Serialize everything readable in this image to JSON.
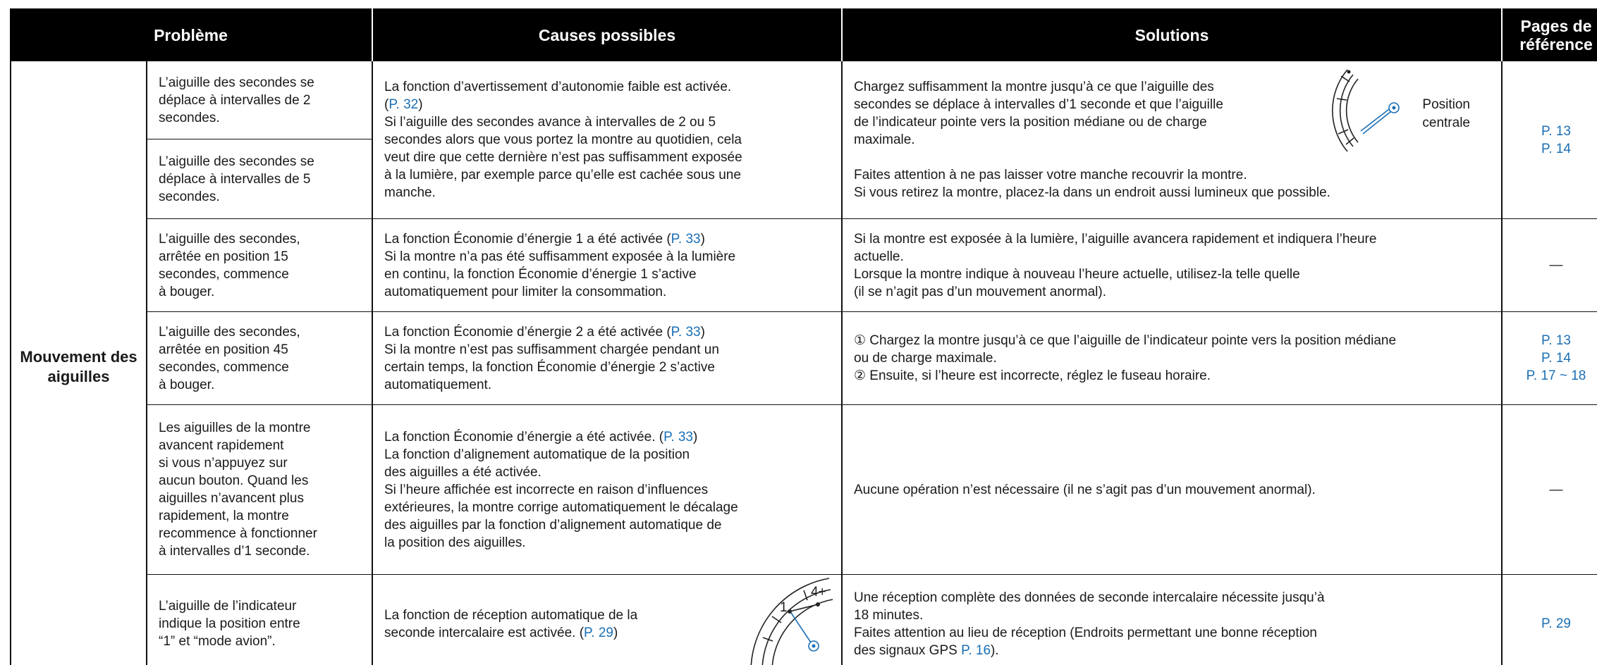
{
  "header": {
    "problem": "Problème",
    "causes": "Causes possibles",
    "solutions": "Solutions",
    "pages": [
      "Pages de",
      "référence"
    ]
  },
  "category": [
    "Mouvement des",
    "aiguilles"
  ],
  "rows": [
    {
      "problems": [
        [
          "L’aiguille des secondes se",
          "déplace à intervalles de 2",
          "secondes."
        ],
        [
          "L’aiguille des secondes se",
          "déplace à intervalles de 5",
          "secondes."
        ]
      ],
      "causes": [
        [
          "La fonction d’avertissement d’autonomie faible est activée.",
          [
            "(",
            {
              "ref": "P. 32"
            },
            ")"
          ],
          "Si l’aiguille des secondes avance à intervalles de 2 ou 5",
          "secondes alors que vous portez la montre au quotidien, cela",
          "veut dire que cette dernière n’est pas suffisamment exposée",
          "à la lumière, par exemple parce qu’elle est cachée sous une",
          "manche."
        ]
      ],
      "solutions": [
        [
          "Chargez suffisamment la montre jusqu’à ce que l’aiguille des",
          "secondes se déplace à intervalles d’1 seconde et que l’aiguille",
          "de l’indicateur pointe vers la position médiane ou de charge",
          "maximale."
        ],
        [
          "Faites attention à ne pas laisser votre manche recouvrir la montre.",
          "Si vous retirez la montre, placez-la dans un endroit aussi lumineux que possible."
        ]
      ],
      "figure": [
        "Position",
        "centrale"
      ],
      "pages": [
        {
          "ref": "P. 13"
        },
        {
          "ref": "P. 14"
        }
      ]
    },
    {
      "problems": [
        [
          "L’aiguille des secondes,",
          "arrêtée en position 15",
          "secondes, commence",
          "à bouger."
        ]
      ],
      "causes": [
        [
          [
            "La fonction Économie d’énergie 1 a été activée (",
            {
              "ref": "P. 33"
            },
            ")"
          ],
          "Si la montre n’a pas été suffisamment exposée à la lumière",
          "en continu, la fonction Économie d’énergie 1 s’active",
          "automatiquement pour limiter la consommation."
        ]
      ],
      "solutions": [
        [
          "Si la montre est exposée à la lumière, l’aiguille avancera rapidement et indiquera l’heure",
          "actuelle.",
          "Lorsque la montre indique à nouveau l’heure actuelle, utilisez-la telle quelle",
          "(il se n’agit pas d’un mouvement anormal)."
        ]
      ],
      "pages": [
        "—"
      ]
    },
    {
      "problems": [
        [
          "L’aiguille des secondes,",
          "arrêtée en position 45",
          "secondes, commence",
          "à bouger."
        ]
      ],
      "causes": [
        [
          [
            "La fonction Économie d’énergie 2 a été activée (",
            {
              "ref": "P. 33"
            },
            ")"
          ],
          "Si la montre n’est pas suffisamment chargée pendant un",
          "certain temps, la fonction Économie d’énergie 2 s’active",
          "automatiquement."
        ]
      ],
      "solutions": [
        [
          "① Chargez la montre jusqu’à ce que l’aiguille de l’indicateur pointe vers la position médiane",
          "ou de charge maximale.",
          "② Ensuite, si l’heure est incorrecte, réglez le fuseau horaire."
        ]
      ],
      "pages": [
        {
          "ref": "P. 13"
        },
        {
          "ref": "P. 14"
        },
        {
          "ref": "P. 17 ~ 18"
        }
      ]
    },
    {
      "problems": [
        [
          "Les aiguilles de la montre",
          "avancent rapidement",
          "si vous n’appuyez sur",
          "aucun bouton. Quand les",
          "aiguilles n’avancent plus",
          "rapidement, la montre",
          "recommence à fonctionner",
          "à intervalles d’1 seconde."
        ]
      ],
      "causes": [
        [
          [
            "La fonction Économie d’énergie a été activée. (",
            {
              "ref": "P. 33"
            },
            ")"
          ],
          "La fonction d’alignement automatique de la position",
          "des aiguilles a été activée.",
          "Si l’heure affichée est incorrecte en raison d’influences",
          "extérieures, la montre corrige automatiquement le décalage",
          "des aiguilles par la fonction d’alignement automatique de",
          "la position des aiguilles."
        ]
      ],
      "solutions": [
        [
          "Aucune opération n’est nécessaire (il ne s’agit pas d’un mouvement anormal)."
        ]
      ],
      "pages": [
        "—"
      ]
    },
    {
      "problems": [
        [
          "L’aiguille de l’indicateur",
          "indique la position entre",
          "“1” et “mode avion”."
        ]
      ],
      "causes": [
        [
          "La fonction de réception automatique de la",
          [
            "seconde intercalaire est activée. (",
            {
              "ref": "P. 29"
            },
            ")"
          ]
        ]
      ],
      "figure": [
        "4+",
        "1"
      ],
      "solutions": [
        [
          "Une réception complète des données de seconde intercalaire nécessite jusqu’à",
          "18 minutes.",
          "Faites attention au lieu de réception (Endroits permettant une bonne réception",
          [
            "des signaux GPS ",
            {
              "ref": "P. 16"
            },
            ")."
          ]
        ]
      ],
      "pages": [
        {
          "ref": "P. 29"
        }
      ]
    }
  ]
}
